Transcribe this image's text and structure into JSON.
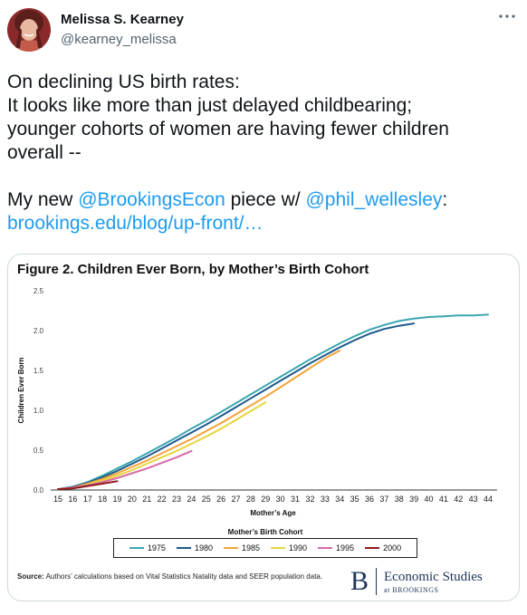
{
  "author": {
    "display_name": "Melissa S. Kearney",
    "handle": "@kearney_melissa"
  },
  "tweet": {
    "line1": "On declining US birth rates:",
    "line2": "It looks like more than just delayed childbearing;",
    "line3": "younger cohorts of women are having fewer children",
    "line4": "overall --",
    "line6_pre": "My new ",
    "mention1": "@BrookingsEcon",
    "line6_mid": " piece w/ ",
    "mention2": "@phil_wellesley",
    "line6_post": ":",
    "link": "brookings.edu/blog/up-front/…"
  },
  "more_icon": "ellipsis-icon",
  "figure": {
    "source_label": "Source:",
    "source_text": " Authors’ calculations based on Vital Statistics Natality data and SEER population data.",
    "brand_name": "Economic Studies",
    "brand_sub": "at BROOKINGS",
    "brand_letter": "B"
  },
  "colors": {
    "link": "#1d9bf0",
    "c1975": "#3aa6b0",
    "c1980": "#1e5a8c",
    "c1985": "#f4a339",
    "c1990": "#e6d53a",
    "c1995": "#d86aa8",
    "c2000": "#8e1b1b"
  },
  "chart_data": {
    "type": "line",
    "title": "Figure 2. Children Ever Born, by Mother’s Birth Cohort",
    "xlabel": "Mother’s Age",
    "ylabel": "Children Ever Born",
    "xlim": [
      15,
      44
    ],
    "ylim": [
      0,
      2.5
    ],
    "x_ticks": [
      15,
      16,
      17,
      18,
      19,
      20,
      21,
      22,
      23,
      24,
      25,
      26,
      27,
      28,
      29,
      30,
      31,
      32,
      33,
      34,
      35,
      36,
      37,
      38,
      39,
      40,
      41,
      42,
      43,
      44
    ],
    "y_ticks": [
      "0.0",
      "0.5",
      "1.0",
      "1.5",
      "2.0",
      "2.5"
    ],
    "legend_title": "Mother’s Birth Cohort",
    "legend_position": "bottom",
    "series": [
      {
        "name": "1975",
        "color": "#3aa6b0",
        "x": [
          15,
          16,
          17,
          18,
          19,
          20,
          21,
          22,
          23,
          24,
          25,
          26,
          27,
          28,
          29,
          30,
          31,
          32,
          33,
          34,
          35,
          36,
          37,
          38,
          39,
          40,
          41,
          42,
          43,
          44
        ],
        "y": [
          0.01,
          0.04,
          0.1,
          0.18,
          0.27,
          0.36,
          0.46,
          0.56,
          0.66,
          0.77,
          0.87,
          0.98,
          1.09,
          1.2,
          1.31,
          1.42,
          1.53,
          1.64,
          1.74,
          1.84,
          1.93,
          2.01,
          2.07,
          2.12,
          2.15,
          2.17,
          2.18,
          2.19,
          2.19,
          2.2
        ]
      },
      {
        "name": "1980",
        "color": "#1e5a8c",
        "x": [
          15,
          16,
          17,
          18,
          19,
          20,
          21,
          22,
          23,
          24,
          25,
          26,
          27,
          28,
          29,
          30,
          31,
          32,
          33,
          34,
          35,
          36,
          37,
          38,
          39
        ],
        "y": [
          0.01,
          0.04,
          0.09,
          0.16,
          0.24,
          0.33,
          0.42,
          0.52,
          0.62,
          0.72,
          0.82,
          0.93,
          1.04,
          1.15,
          1.26,
          1.37,
          1.48,
          1.59,
          1.69,
          1.79,
          1.88,
          1.96,
          2.02,
          2.06,
          2.09
        ]
      },
      {
        "name": "1985",
        "color": "#f4a339",
        "x": [
          15,
          16,
          17,
          18,
          19,
          20,
          21,
          22,
          23,
          24,
          25,
          26,
          27,
          28,
          29,
          30,
          31,
          32,
          33,
          34
        ],
        "y": [
          0.01,
          0.03,
          0.08,
          0.14,
          0.21,
          0.29,
          0.37,
          0.46,
          0.55,
          0.64,
          0.74,
          0.84,
          0.95,
          1.06,
          1.17,
          1.29,
          1.41,
          1.53,
          1.65,
          1.75
        ]
      },
      {
        "name": "1990",
        "color": "#e6d53a",
        "x": [
          15,
          16,
          17,
          18,
          19,
          20,
          21,
          22,
          23,
          24,
          25,
          26,
          27,
          28,
          29
        ],
        "y": [
          0.01,
          0.03,
          0.07,
          0.12,
          0.18,
          0.25,
          0.33,
          0.41,
          0.49,
          0.58,
          0.67,
          0.77,
          0.88,
          0.99,
          1.1
        ]
      },
      {
        "name": "1995",
        "color": "#d86aa8",
        "x": [
          15,
          16,
          17,
          18,
          19,
          20,
          21,
          22,
          23,
          24
        ],
        "y": [
          0.01,
          0.03,
          0.06,
          0.1,
          0.15,
          0.21,
          0.27,
          0.34,
          0.41,
          0.49
        ]
      },
      {
        "name": "2000",
        "color": "#8e1b1b",
        "x": [
          15,
          16,
          17,
          18,
          19
        ],
        "y": [
          0.01,
          0.02,
          0.05,
          0.08,
          0.11
        ]
      }
    ]
  }
}
